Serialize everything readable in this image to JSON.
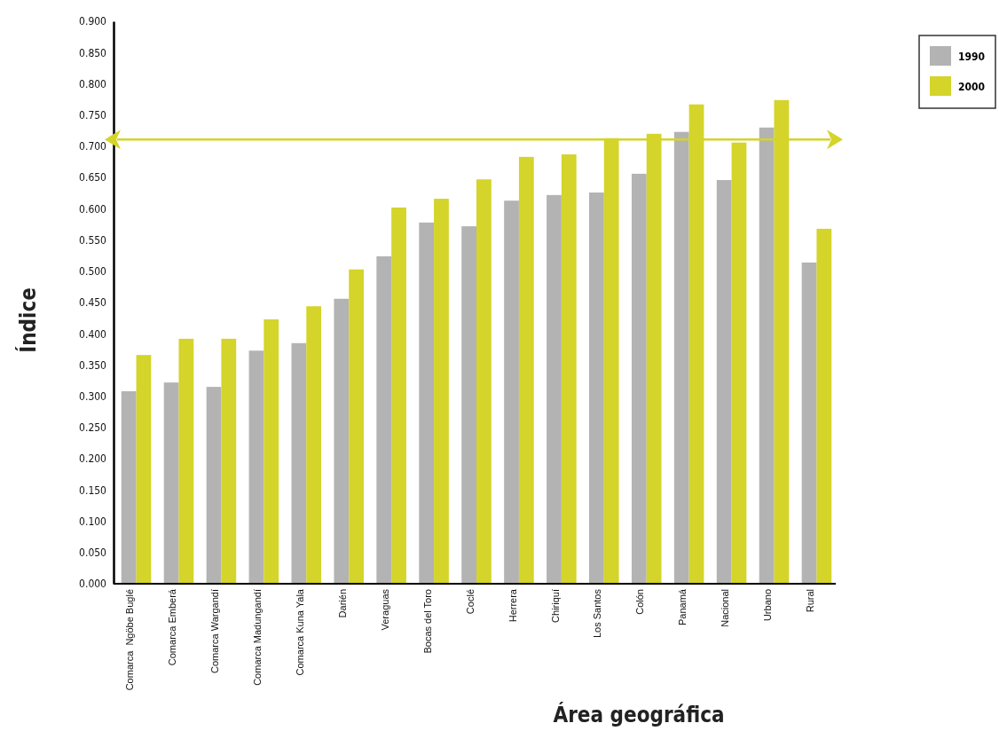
{
  "chart_data": {
    "type": "bar",
    "xlabel": "Área geográfica",
    "ylabel": "Índice",
    "categories": [
      "Comarca  Ngöbe Buglé",
      "Comarca Emberá",
      "Comarca Wargandí",
      "Comarca Madungandí",
      "Comarca Kuna Yala",
      "Darién",
      "Veraguas",
      "Bocas del Toro",
      "Coclé",
      "Herrera",
      "Chiriquí",
      "Los Santos",
      "Colón",
      "Panamá",
      "Nacional",
      "Urbano",
      "Rural"
    ],
    "series": [
      {
        "name": "1990",
        "color": "#b3b3b3",
        "values": [
          0.308,
          0.322,
          0.315,
          0.373,
          0.385,
          0.456,
          0.524,
          0.578,
          0.572,
          0.613,
          0.622,
          0.626,
          0.656,
          0.723,
          0.646,
          0.73,
          0.514
        ]
      },
      {
        "name": "2000",
        "color": "#d4d42a",
        "values": [
          0.366,
          0.392,
          0.392,
          0.423,
          0.444,
          0.503,
          0.602,
          0.616,
          0.647,
          0.683,
          0.687,
          0.713,
          0.72,
          0.767,
          0.706,
          0.774,
          0.568
        ]
      }
    ],
    "ylim": [
      0,
      0.9
    ],
    "yticks": [
      {
        "value": 0,
        "label": "0.000"
      },
      {
        "value": 0.05,
        "label": "0.050"
      },
      {
        "value": 0.1,
        "label": "0.100"
      },
      {
        "value": 0.15,
        "label": "0.150"
      },
      {
        "value": 0.2,
        "label": "0.200"
      },
      {
        "value": 0.25,
        "label": "0.250"
      },
      {
        "value": 0.3,
        "label": "0.300"
      },
      {
        "value": 0.35,
        "label": "0.350"
      },
      {
        "value": 0.4,
        "label": "0.400"
      },
      {
        "value": 0.45,
        "label": "0.450"
      },
      {
        "value": 0.5,
        "label": "0.500"
      },
      {
        "value": 0.55,
        "label": "0.550"
      },
      {
        "value": 0.6,
        "label": "0.600"
      },
      {
        "value": 0.65,
        "label": "0.650"
      },
      {
        "value": 0.7,
        "label": "0.700"
      },
      {
        "value": 0.75,
        "label": "0.750"
      },
      {
        "value": 0.8,
        "label": "0.800"
      },
      {
        "value": 0.85,
        "label": "0.850"
      },
      {
        "value": 0.9,
        "label": "0.900"
      }
    ],
    "ref_lines": [
      {
        "axis": "y",
        "value": 0.711,
        "color": "#d4d42a"
      }
    ],
    "legend": "top right",
    "grid": false
  }
}
